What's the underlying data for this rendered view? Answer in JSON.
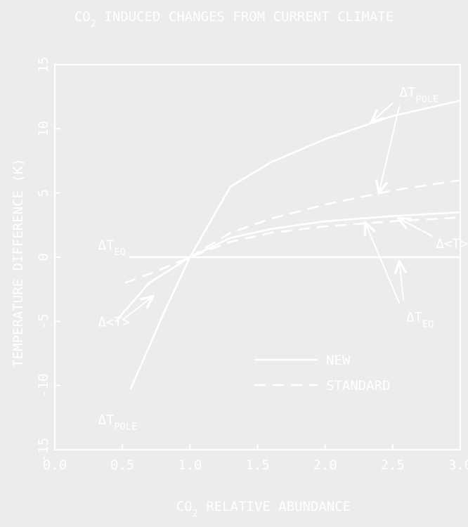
{
  "chart_data": {
    "type": "line",
    "title": "CO2 INDUCED CHANGES FROM CURRENT CLIMATE",
    "title_parts": {
      "pre": "CO",
      "sub": "2",
      "post": " INDUCED CHANGES FROM CURRENT CLIMATE"
    },
    "xlabel": "CO2 RELATIVE ABUNDANCE",
    "xlabel_parts": {
      "pre": "CO",
      "sub": "2",
      "post": " RELATIVE ABUNDANCE"
    },
    "ylabel": "TEMPERATURE DIFFERENCE (K)",
    "xlim": [
      0.0,
      3.0
    ],
    "ylim": [
      -15,
      15
    ],
    "xticks": [
      "0.0",
      "0.5",
      "1.0",
      "1.5",
      "2.0",
      "2.5",
      "3.0"
    ],
    "xtick_values": [
      0.0,
      0.5,
      1.0,
      1.5,
      2.0,
      2.5,
      3.0
    ],
    "yticks": [
      "-15",
      "-10",
      "-5",
      "0",
      "5",
      "10",
      "15"
    ],
    "ytick_values": [
      -15,
      -10,
      -5,
      0,
      5,
      10,
      15
    ],
    "legend": {
      "position": "bottom-right",
      "entries": [
        {
          "label": "NEW",
          "style": "solid"
        },
        {
          "label": "STANDARD",
          "style": "dashed"
        }
      ]
    },
    "series": [
      {
        "style": "solid",
        "points": [
          [
            0.56,
            -10.3
          ],
          [
            0.8,
            -4.5
          ],
          [
            1.0,
            0.0
          ],
          [
            1.3,
            5.5
          ],
          [
            1.6,
            7.4
          ],
          [
            2.0,
            9.2
          ],
          [
            2.5,
            11.0
          ],
          [
            3.0,
            12.2
          ]
        ]
      },
      {
        "style": "solid",
        "points": [
          [
            0.45,
            -5.0
          ],
          [
            0.7,
            -2.0
          ],
          [
            1.0,
            0.0
          ],
          [
            1.3,
            1.5
          ],
          [
            1.6,
            2.2
          ],
          [
            2.0,
            2.8
          ],
          [
            2.5,
            3.2
          ],
          [
            3.0,
            3.5
          ]
        ]
      },
      {
        "style": "dashed",
        "points": [
          [
            1.0,
            0.0
          ],
          [
            1.3,
            1.9
          ],
          [
            1.6,
            3.0
          ],
          [
            2.0,
            4.1
          ],
          [
            2.5,
            5.2
          ],
          [
            3.0,
            6.0
          ]
        ]
      },
      {
        "style": "dashed",
        "points": [
          [
            0.52,
            -2.0
          ],
          [
            0.75,
            -1.1
          ],
          [
            1.0,
            0.0
          ],
          [
            1.3,
            1.2
          ],
          [
            1.6,
            1.9
          ],
          [
            2.0,
            2.4
          ],
          [
            2.5,
            2.8
          ],
          [
            3.0,
            3.1
          ]
        ]
      }
    ],
    "reference_line": {
      "y": 0,
      "x_from": 0.55,
      "x_to": 3.0
    },
    "annotations": [
      {
        "id": "pole-top",
        "text_main": "ΔT",
        "text_sub": "POLE",
        "x": 2.55,
        "y": 12.5,
        "arrows": [
          [
            2.5,
            12.0,
            2.35,
            10.6
          ],
          [
            2.55,
            11.8,
            2.4,
            5.1
          ]
        ]
      },
      {
        "id": "avg-right",
        "text_main": "Δ<T>",
        "text_sub": "",
        "x": 2.82,
        "y": 0.7,
        "arrows": [
          [
            2.8,
            1.6,
            2.55,
            3.0
          ]
        ]
      },
      {
        "id": "eq-right",
        "text_main": "ΔT",
        "text_sub": "EQ",
        "x": 2.6,
        "y": -5.0,
        "arrows": [
          [
            2.55,
            -3.6,
            2.3,
            2.6
          ],
          [
            2.58,
            -3.4,
            2.55,
            -0.4
          ]
        ]
      },
      {
        "id": "eq-left",
        "text_main": "ΔT",
        "text_sub": "EQ",
        "x": 0.32,
        "y": 0.6,
        "arrows": []
      },
      {
        "id": "avg-left",
        "text_main": "Δ<T>",
        "text_sub": "",
        "x": 0.32,
        "y": -5.4,
        "arrows": [
          [
            0.5,
            -4.9,
            0.72,
            -3.1
          ]
        ]
      },
      {
        "id": "pole-bottom",
        "text_main": "ΔT",
        "text_sub": "POLE",
        "x": 0.32,
        "y": -13.0,
        "arrows": []
      }
    ],
    "colors": {
      "background": "#ececec",
      "ink": "#ffffff"
    },
    "grid": false
  }
}
